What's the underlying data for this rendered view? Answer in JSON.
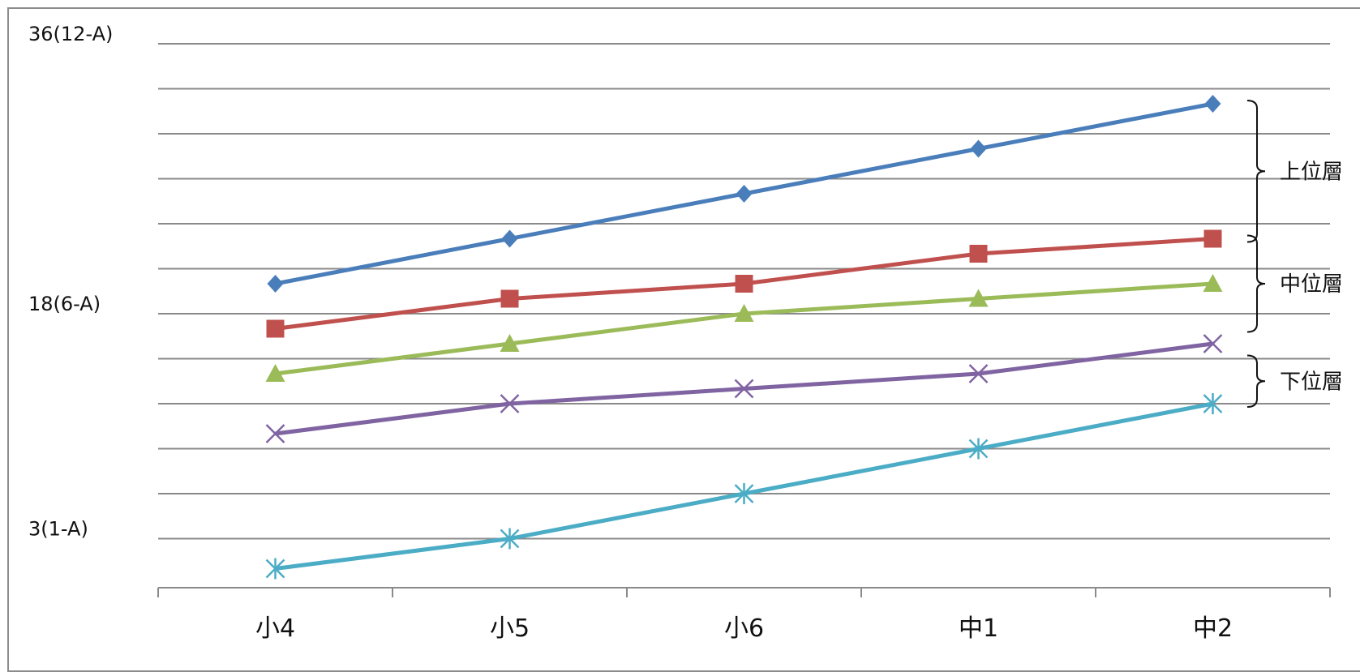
{
  "chart_data": {
    "type": "line",
    "categories": [
      "小4",
      "小5",
      "小6",
      "中1",
      "中2"
    ],
    "y_tick_labels": [
      {
        "value": 36,
        "text": "36(12-A)"
      },
      {
        "value": 18,
        "text": "18(6-A)"
      },
      {
        "value": 3,
        "text": "3(1-A)"
      }
    ],
    "ylim": [
      3,
      36
    ],
    "grid": true,
    "series": [
      {
        "values": [
          20,
          23,
          26,
          29,
          32
        ],
        "color": "#4a7ebb",
        "marker": "diamond"
      },
      {
        "values": [
          17,
          19,
          20,
          22,
          23
        ],
        "color": "#c0504d",
        "marker": "square"
      },
      {
        "values": [
          14,
          16,
          18,
          19,
          20
        ],
        "color": "#9bbb59",
        "marker": "triangle"
      },
      {
        "values": [
          10,
          12,
          13,
          14,
          16
        ],
        "color": "#8064a2",
        "marker": "x"
      },
      {
        "values": [
          1,
          3,
          6,
          9,
          12
        ],
        "color": "#4bacc6",
        "marker": "star"
      }
    ],
    "annotations": [
      {
        "text": "上位層",
        "range": [
          23,
          32
        ]
      },
      {
        "text": "中位層",
        "range": [
          17,
          23
        ]
      },
      {
        "text": "下位層",
        "range": [
          12,
          15
        ]
      }
    ]
  }
}
